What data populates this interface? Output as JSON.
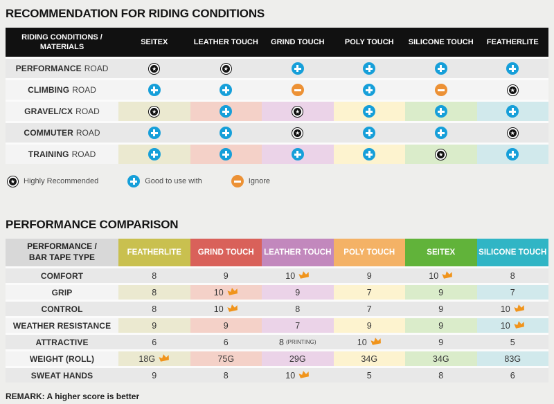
{
  "colors": {
    "page_background": "#eeeeec",
    "header_bar": "#111111",
    "star": "#111111",
    "plus": "#169fd9",
    "minus": "#ec9135",
    "crown": "#f0941c",
    "row_gray": "#e8e8e8",
    "row_light": "#f4f4f4",
    "column_tints": [
      "#ebe9d0",
      "#f4d1c8",
      "#ebd3e8",
      "#fdf3cf",
      "#daecca",
      "#d1e9ec"
    ]
  },
  "section1": {
    "title": "RECOMMENDATION FOR RIDING CONDITIONS",
    "table": {
      "header_line1": "RIDING CONDITIONS /",
      "header_line2": "MATERIALS",
      "columns": [
        "SEITEX",
        "LEATHER TOUCH",
        "GRIND TOUCH",
        "POLY TOUCH",
        "SILICONE TOUCH",
        "FEATHERLITE"
      ],
      "rows": [
        {
          "label_bold": "PERFORMANCE",
          "label_rest": "ROAD",
          "style": "gray",
          "cells": [
            "star",
            "star",
            "plus",
            "plus",
            "plus",
            "plus"
          ]
        },
        {
          "label_bold": "CLIMBING",
          "label_rest": "ROAD",
          "style": "light",
          "cells": [
            "plus",
            "plus",
            "minus",
            "plus",
            "minus",
            "star"
          ]
        },
        {
          "label_bold": "GRAVEL/CX",
          "label_rest": "ROAD",
          "style": "tinted",
          "cells": [
            "star",
            "plus",
            "star",
            "plus",
            "plus",
            "plus"
          ]
        },
        {
          "label_bold": "COMMUTER",
          "label_rest": "ROAD",
          "style": "gray",
          "cells": [
            "plus",
            "plus",
            "star",
            "plus",
            "plus",
            "star"
          ]
        },
        {
          "label_bold": "TRAINING",
          "label_rest": "ROAD",
          "style": "tinted",
          "cells": [
            "plus",
            "plus",
            "plus",
            "plus",
            "star",
            "plus"
          ]
        }
      ]
    },
    "legend": [
      {
        "icon": "star",
        "label": "Highly Recommended"
      },
      {
        "icon": "plus",
        "label": "Good to use with"
      },
      {
        "icon": "minus",
        "label": "Ignore"
      }
    ]
  },
  "section2": {
    "title": "PERFORMANCE COMPARISON",
    "table": {
      "header_line1": "PERFORMANCE /",
      "header_line2": "BAR TAPE TYPE",
      "columns": [
        {
          "label": "FEATHERLITE",
          "color": "#c9c04f"
        },
        {
          "label": "GRIND TOUCH",
          "color": "#d9615a"
        },
        {
          "label": "LEATHER TOUCH",
          "color": "#c288bd"
        },
        {
          "label": "POLY TOUCH",
          "color": "#f4b266"
        },
        {
          "label": "SEITEX",
          "color": "#61b33a"
        },
        {
          "label": "SILICONE TOUCH",
          "color": "#30b5c5"
        }
      ],
      "rows": [
        {
          "label": "COMFORT",
          "style": "gray",
          "cells": [
            {
              "v": "8"
            },
            {
              "v": "9"
            },
            {
              "v": "10",
              "crown": true
            },
            {
              "v": "9"
            },
            {
              "v": "10",
              "crown": true
            },
            {
              "v": "8"
            }
          ]
        },
        {
          "label": "GRIP",
          "style": "tinted",
          "cells": [
            {
              "v": "8"
            },
            {
              "v": "10",
              "crown": true
            },
            {
              "v": "9"
            },
            {
              "v": "7"
            },
            {
              "v": "9"
            },
            {
              "v": "7"
            }
          ]
        },
        {
          "label": "CONTROL",
          "style": "gray",
          "cells": [
            {
              "v": "8"
            },
            {
              "v": "10",
              "crown": true
            },
            {
              "v": "8"
            },
            {
              "v": "7"
            },
            {
              "v": "9"
            },
            {
              "v": "10",
              "crown": true
            }
          ]
        },
        {
          "label": "WEATHER RESISTANCE",
          "style": "tinted",
          "cells": [
            {
              "v": "9"
            },
            {
              "v": "9"
            },
            {
              "v": "7"
            },
            {
              "v": "9"
            },
            {
              "v": "9"
            },
            {
              "v": "10",
              "crown": true
            }
          ]
        },
        {
          "label": "ATTRACTIVE",
          "style": "gray",
          "cells": [
            {
              "v": "6"
            },
            {
              "v": "6"
            },
            {
              "v": "8",
              "note": "(PRINTING)"
            },
            {
              "v": "10",
              "crown": true
            },
            {
              "v": "9"
            },
            {
              "v": "5"
            }
          ]
        },
        {
          "label": "WEIGHT (ROLL)",
          "style": "tinted",
          "cells": [
            {
              "v": "18G",
              "crown": true
            },
            {
              "v": "75G"
            },
            {
              "v": "29G"
            },
            {
              "v": "34G"
            },
            {
              "v": "34G"
            },
            {
              "v": "83G"
            }
          ]
        },
        {
          "label": "SWEAT HANDS",
          "style": "gray",
          "cells": [
            {
              "v": "9"
            },
            {
              "v": "8"
            },
            {
              "v": "10",
              "crown": true
            },
            {
              "v": "5"
            },
            {
              "v": "8"
            },
            {
              "v": "6"
            }
          ]
        }
      ]
    },
    "remark": "REMARK: A higher score is better"
  },
  "chart_data": [
    {
      "type": "table",
      "title": "RECOMMENDATION FOR RIDING CONDITIONS",
      "row_header": "RIDING CONDITIONS / MATERIALS",
      "columns": [
        "SEITEX",
        "LEATHER TOUCH",
        "GRIND TOUCH",
        "POLY TOUCH",
        "SILICONE TOUCH",
        "FEATHERLITE"
      ],
      "rows": [
        {
          "label": "PERFORMANCE ROAD",
          "values": [
            "highly-recommended",
            "highly-recommended",
            "good-to-use-with",
            "good-to-use-with",
            "good-to-use-with",
            "good-to-use-with"
          ]
        },
        {
          "label": "CLIMBING ROAD",
          "values": [
            "good-to-use-with",
            "good-to-use-with",
            "ignore",
            "good-to-use-with",
            "ignore",
            "highly-recommended"
          ]
        },
        {
          "label": "GRAVEL/CX ROAD",
          "values": [
            "highly-recommended",
            "good-to-use-with",
            "highly-recommended",
            "good-to-use-with",
            "good-to-use-with",
            "good-to-use-with"
          ]
        },
        {
          "label": "COMMUTER ROAD",
          "values": [
            "good-to-use-with",
            "good-to-use-with",
            "highly-recommended",
            "good-to-use-with",
            "good-to-use-with",
            "highly-recommended"
          ]
        },
        {
          "label": "TRAINING ROAD",
          "values": [
            "good-to-use-with",
            "good-to-use-with",
            "good-to-use-with",
            "good-to-use-with",
            "highly-recommended",
            "good-to-use-with"
          ]
        }
      ],
      "legend": [
        "Highly Recommended",
        "Good to use with",
        "Ignore"
      ]
    },
    {
      "type": "table",
      "title": "PERFORMANCE COMPARISON",
      "row_header": "PERFORMANCE / BAR TAPE TYPE",
      "columns": [
        "FEATHERLITE",
        "GRIND TOUCH",
        "LEATHER TOUCH",
        "POLY TOUCH",
        "SEITEX",
        "SILICONE TOUCH"
      ],
      "rows": [
        {
          "label": "COMFORT",
          "values": [
            8,
            9,
            10,
            9,
            10,
            8
          ],
          "best": [
            "LEATHER TOUCH",
            "SEITEX"
          ]
        },
        {
          "label": "GRIP",
          "values": [
            8,
            10,
            9,
            7,
            9,
            7
          ],
          "best": [
            "GRIND TOUCH"
          ]
        },
        {
          "label": "CONTROL",
          "values": [
            8,
            10,
            8,
            7,
            9,
            10
          ],
          "best": [
            "GRIND TOUCH",
            "SILICONE TOUCH"
          ]
        },
        {
          "label": "WEATHER RESISTANCE",
          "values": [
            9,
            9,
            7,
            9,
            9,
            10
          ],
          "best": [
            "SILICONE TOUCH"
          ]
        },
        {
          "label": "ATTRACTIVE",
          "values": [
            6,
            6,
            "8 (PRINTING)",
            10,
            9,
            5
          ],
          "best": [
            "POLY TOUCH"
          ]
        },
        {
          "label": "WEIGHT (ROLL)",
          "values": [
            "18G",
            "75G",
            "29G",
            "34G",
            "34G",
            "83G"
          ],
          "best": [
            "FEATHERLITE"
          ]
        },
        {
          "label": "SWEAT HANDS",
          "values": [
            9,
            8,
            10,
            5,
            8,
            6
          ],
          "best": [
            "LEATHER TOUCH"
          ]
        }
      ],
      "note": "REMARK: A higher score is better"
    }
  ]
}
